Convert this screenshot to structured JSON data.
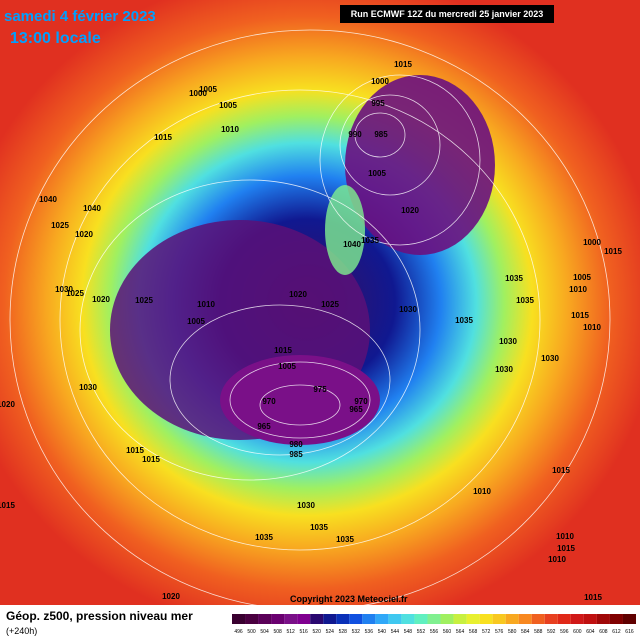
{
  "header": {
    "title": "samedi 4 février 2023",
    "subtitle": "13:00 locale",
    "run": "Run ECMWF 12Z du mercredi 25 janvier 2023"
  },
  "footer": {
    "caption": "Géop. z500, pression niveau mer",
    "lead": "(+240h)",
    "copyright": "Copyright 2023 Meteociel.fr"
  },
  "scale": {
    "labels": [
      496,
      500,
      504,
      508,
      512,
      516,
      520,
      524,
      528,
      532,
      536,
      540,
      544,
      548,
      552,
      556,
      560,
      564,
      568,
      572,
      576,
      580,
      584,
      588,
      592,
      596,
      600,
      604,
      608,
      612,
      616
    ],
    "colors": [
      "#3a0030",
      "#4a0040",
      "#5a0058",
      "#6a0070",
      "#7a1088",
      "#800090",
      "#2a0870",
      "#101890",
      "#0a30b8",
      "#1050e0",
      "#2080f0",
      "#30a8f8",
      "#40c8f0",
      "#50e0e0",
      "#60f0c0",
      "#80f090",
      "#a0f060",
      "#c8f040",
      "#e8f030",
      "#f8e020",
      "#f8c820",
      "#f8a820",
      "#f88820",
      "#f06020",
      "#e84020",
      "#e02818",
      "#d01818",
      "#c01010",
      "#a00808",
      "#800000",
      "#600000"
    ]
  },
  "pressure_labels": [
    1015,
    1000,
    995,
    990,
    985,
    1005,
    1020,
    1000,
    1005,
    1005,
    1010,
    1015,
    1040,
    1040,
    1025,
    1020,
    1040,
    1035,
    1030,
    1025,
    1020,
    1025,
    1010,
    1005,
    1020,
    1025,
    1030,
    1035,
    1035,
    1035,
    1030,
    1030,
    1030,
    1015,
    1005,
    975,
    970,
    965,
    970,
    965,
    980,
    985,
    1030,
    1015,
    1015,
    1010,
    1015,
    1030,
    1035,
    1035,
    1035,
    1020,
    1015,
    1020,
    1000,
    1005,
    1010,
    1015,
    1010,
    1015,
    1010,
    1015,
    1010,
    1015
  ]
}
